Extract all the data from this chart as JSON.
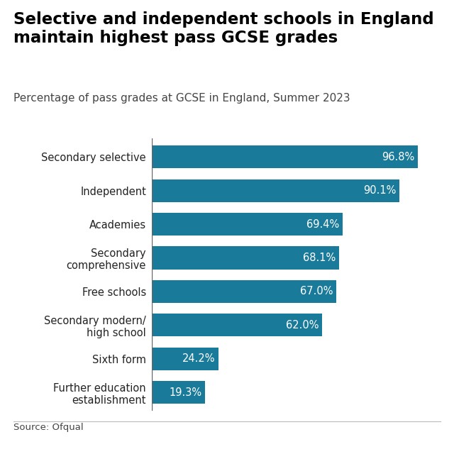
{
  "title_line1": "Selective and independent schools in England",
  "title_line2": "maintain highest pass GCSE grades",
  "subtitle": "Percentage of pass grades at GCSE in England, Summer 2023",
  "source": "Source: Ofqual",
  "categories": [
    "Further education\nestablishment",
    "Sixth form",
    "Secondary modern/\nhigh school",
    "Free schools",
    "Secondary\ncomprehensive",
    "Academies",
    "Independent",
    "Secondary selective"
  ],
  "values": [
    19.3,
    24.2,
    62.0,
    67.0,
    68.1,
    69.4,
    90.1,
    96.8
  ],
  "bar_color": "#1a7a9a",
  "label_color": "#ffffff",
  "background_color": "#ffffff",
  "title_color": "#000000",
  "subtitle_color": "#444444",
  "source_color": "#444444",
  "bar_label_fontsize": 10.5,
  "ylabel_fontsize": 10.5,
  "title_fontsize": 16.5,
  "subtitle_fontsize": 11,
  "xlim": [
    0,
    105
  ],
  "bar_height": 0.68
}
